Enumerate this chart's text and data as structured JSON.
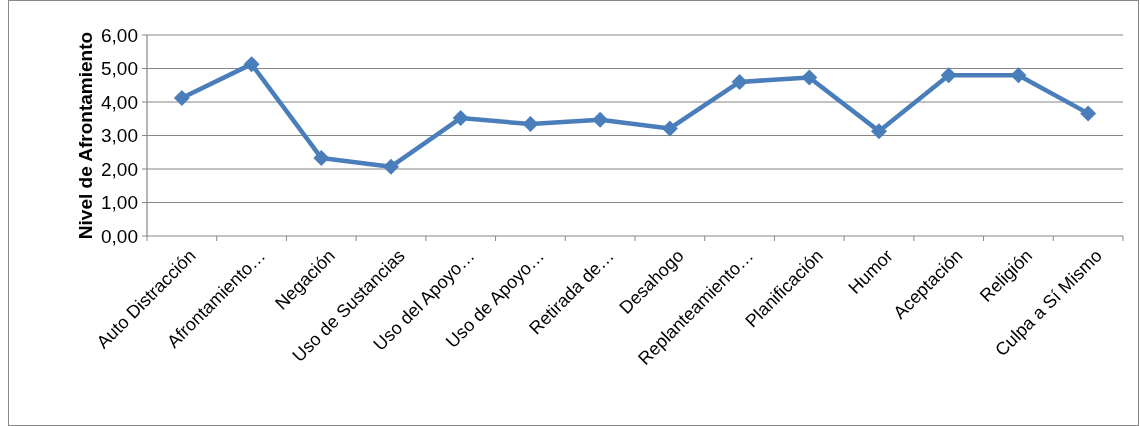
{
  "chart_data": {
    "type": "line",
    "ylabel": "Nivel de Afrontamiento",
    "categories": [
      "Auto Distracción",
      "Afrontamiento…",
      "Negación",
      "Uso de Sustancias",
      "Uso del Apoyo…",
      "Uso de Apoyo…",
      "Retirada de…",
      "Desahogo",
      "Replanteamiento…",
      "Planificación",
      "Humor",
      "Aceptación",
      "Religión",
      "Culpa a Sí Mismo"
    ],
    "series": [
      {
        "color": "#4a7ebb",
        "values": [
          4.12,
          5.13,
          2.33,
          2.07,
          3.52,
          3.34,
          3.47,
          3.21,
          4.6,
          4.73,
          3.13,
          4.8,
          4.8,
          3.66
        ]
      }
    ],
    "ylim": [
      0,
      6
    ],
    "yticks": [
      {
        "value": 0,
        "label": "0,00"
      },
      {
        "value": 1,
        "label": "1,00"
      },
      {
        "value": 2,
        "label": "2,00"
      },
      {
        "value": 3,
        "label": "3,00"
      },
      {
        "value": 4,
        "label": "4,00"
      },
      {
        "value": 5,
        "label": "5,00"
      },
      {
        "value": 6,
        "label": "6,00"
      }
    ],
    "grid": "y",
    "marker": "diamond",
    "line_style": "solid"
  }
}
